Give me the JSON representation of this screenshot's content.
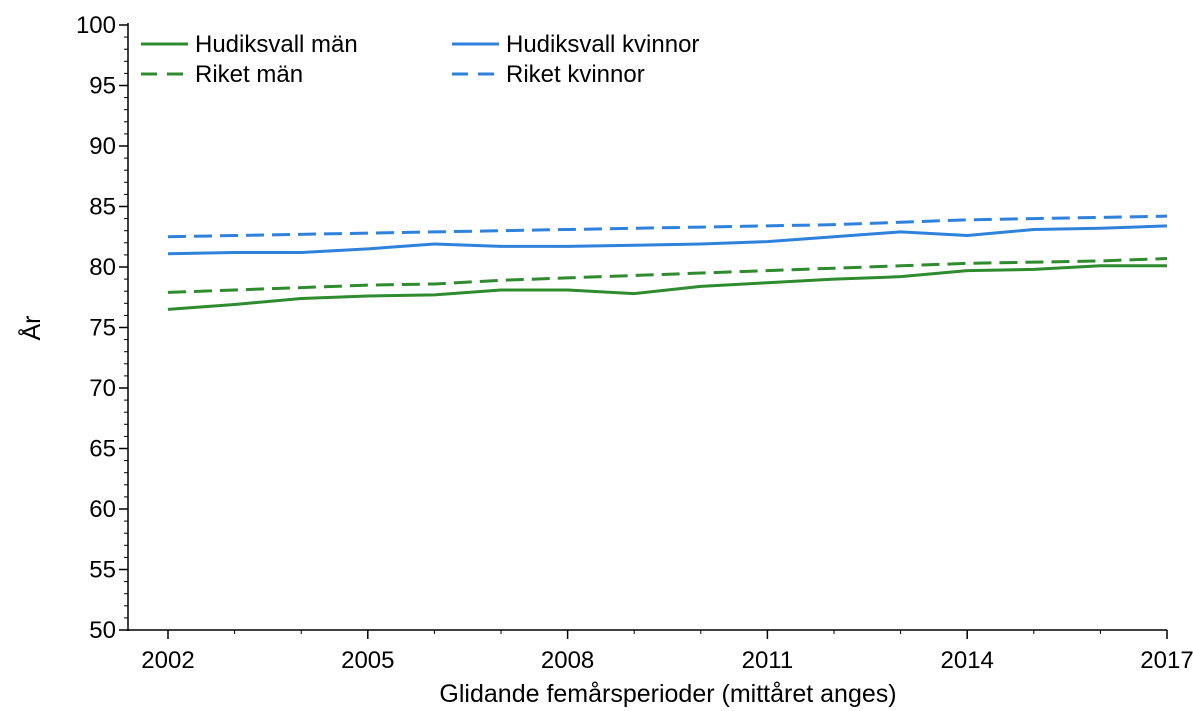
{
  "chart_data": {
    "type": "line",
    "title": "",
    "xlabel": "Glidande femårsperioder (mittåret anges)",
    "ylabel": "År",
    "x": [
      2002,
      2003,
      2004,
      2005,
      2006,
      2007,
      2008,
      2009,
      2010,
      2011,
      2012,
      2013,
      2014,
      2015,
      2016,
      2017
    ],
    "xlim": [
      2002,
      2017
    ],
    "ylim": [
      50,
      100
    ],
    "x_ticks": [
      2002,
      2005,
      2008,
      2011,
      2014,
      2017
    ],
    "y_ticks": [
      50,
      55,
      60,
      65,
      70,
      75,
      80,
      85,
      90,
      95,
      100
    ],
    "grid": false,
    "legend_position": "top-left",
    "series": [
      {
        "name": "Hudiksvall män",
        "color": "#2e8b2e",
        "dash": "solid",
        "values": [
          76.5,
          76.9,
          77.4,
          77.6,
          77.7,
          78.1,
          78.1,
          77.8,
          78.4,
          78.7,
          79.0,
          79.2,
          79.7,
          79.8,
          80.1,
          80.1
        ]
      },
      {
        "name": "Hudiksvall kvinnor",
        "color": "#2f82dc",
        "dash": "solid",
        "values": [
          81.1,
          81.2,
          81.2,
          81.5,
          81.9,
          81.7,
          81.7,
          81.8,
          81.9,
          82.1,
          82.5,
          82.9,
          82.6,
          83.1,
          83.2,
          83.4
        ]
      },
      {
        "name": "Riket män",
        "color": "#2e8b2e",
        "dash": "dashed",
        "values": [
          77.9,
          78.1,
          78.3,
          78.5,
          78.6,
          78.9,
          79.1,
          79.3,
          79.5,
          79.7,
          79.9,
          80.1,
          80.3,
          80.4,
          80.5,
          80.7
        ]
      },
      {
        "name": "Riket kvinnor",
        "color": "#2f82dc",
        "dash": "dashed",
        "values": [
          82.5,
          82.6,
          82.7,
          82.8,
          82.9,
          83.0,
          83.1,
          83.2,
          83.3,
          83.4,
          83.5,
          83.7,
          83.9,
          84.0,
          84.1,
          84.2
        ]
      }
    ]
  }
}
